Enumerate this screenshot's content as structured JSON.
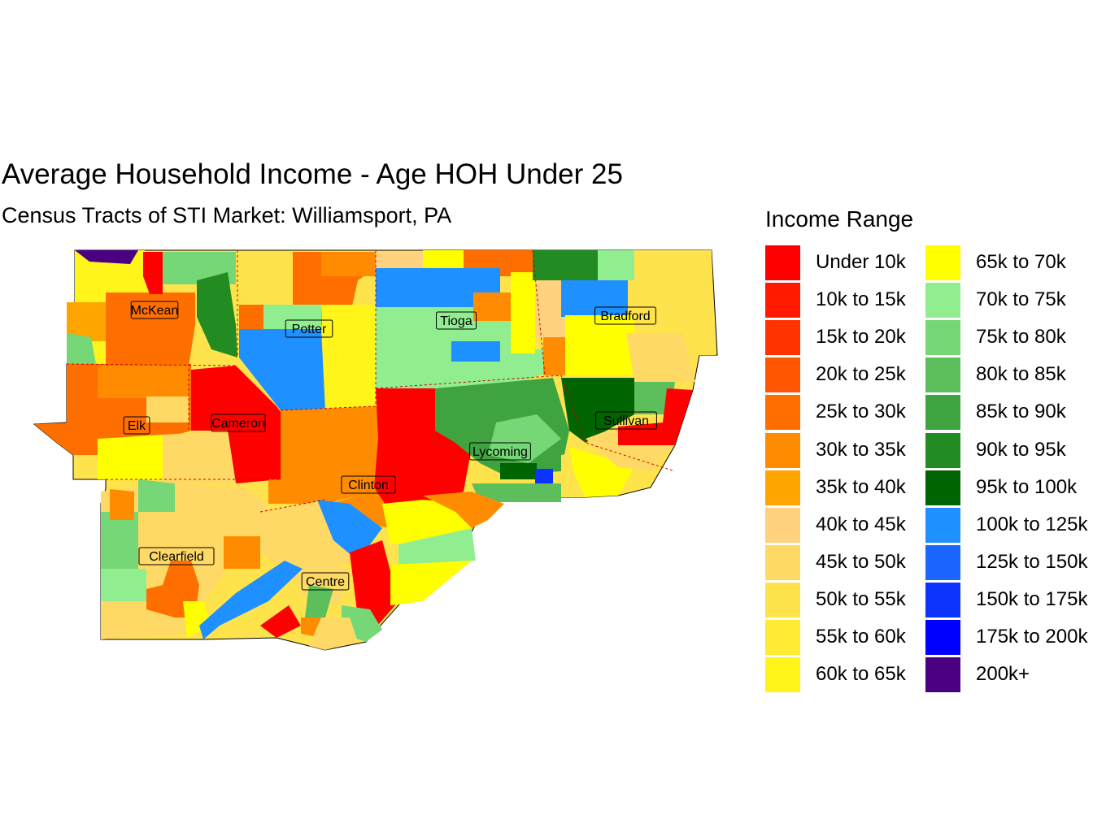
{
  "title": "Average Household Income - Age HOH Under 25",
  "subtitle": "Census Tracts of STI Market: Williamsport, PA",
  "legend": {
    "title": "Income Range",
    "items": [
      {
        "label": "Under 10k",
        "color": "#FF0000"
      },
      {
        "label": "10k to 15k",
        "color": "#FF1A00"
      },
      {
        "label": "15k to 20k",
        "color": "#FF3300"
      },
      {
        "label": "20k to 25k",
        "color": "#FF5500"
      },
      {
        "label": "25k to 30k",
        "color": "#FF6F00"
      },
      {
        "label": "30k to 35k",
        "color": "#FF8C00"
      },
      {
        "label": "35k to 40k",
        "color": "#FFA500"
      },
      {
        "label": "40k to 45k",
        "color": "#FFD27F"
      },
      {
        "label": "45k to 50k",
        "color": "#FFD966"
      },
      {
        "label": "50k to 55k",
        "color": "#FFE34D"
      },
      {
        "label": "55k to 60k",
        "color": "#FFEB33"
      },
      {
        "label": "60k to 65k",
        "color": "#FFF51A"
      },
      {
        "label": "65k to 70k",
        "color": "#FFFF00"
      },
      {
        "label": "70k to 75k",
        "color": "#90EE90"
      },
      {
        "label": "75k to 80k",
        "color": "#76D776"
      },
      {
        "label": "80k to 85k",
        "color": "#5CBF5C"
      },
      {
        "label": "85k to 90k",
        "color": "#3FA33F"
      },
      {
        "label": "90k to 95k",
        "color": "#228B22"
      },
      {
        "label": "95k to 100k",
        "color": "#006400"
      },
      {
        "label": "100k to 125k",
        "color": "#1E90FF"
      },
      {
        "label": "125k to 150k",
        "color": "#1A66FF"
      },
      {
        "label": "150k to 175k",
        "color": "#0D33FF"
      },
      {
        "label": "175k to 200k",
        "color": "#0000FF"
      },
      {
        "label": "200k+",
        "color": "#4B0082"
      }
    ]
  },
  "counties": [
    "McKean",
    "Potter",
    "Tioga",
    "Bradford",
    "Elk",
    "Cameron",
    "Sullivan",
    "Lycoming",
    "Clinton",
    "Clearfield",
    "Centre"
  ]
}
